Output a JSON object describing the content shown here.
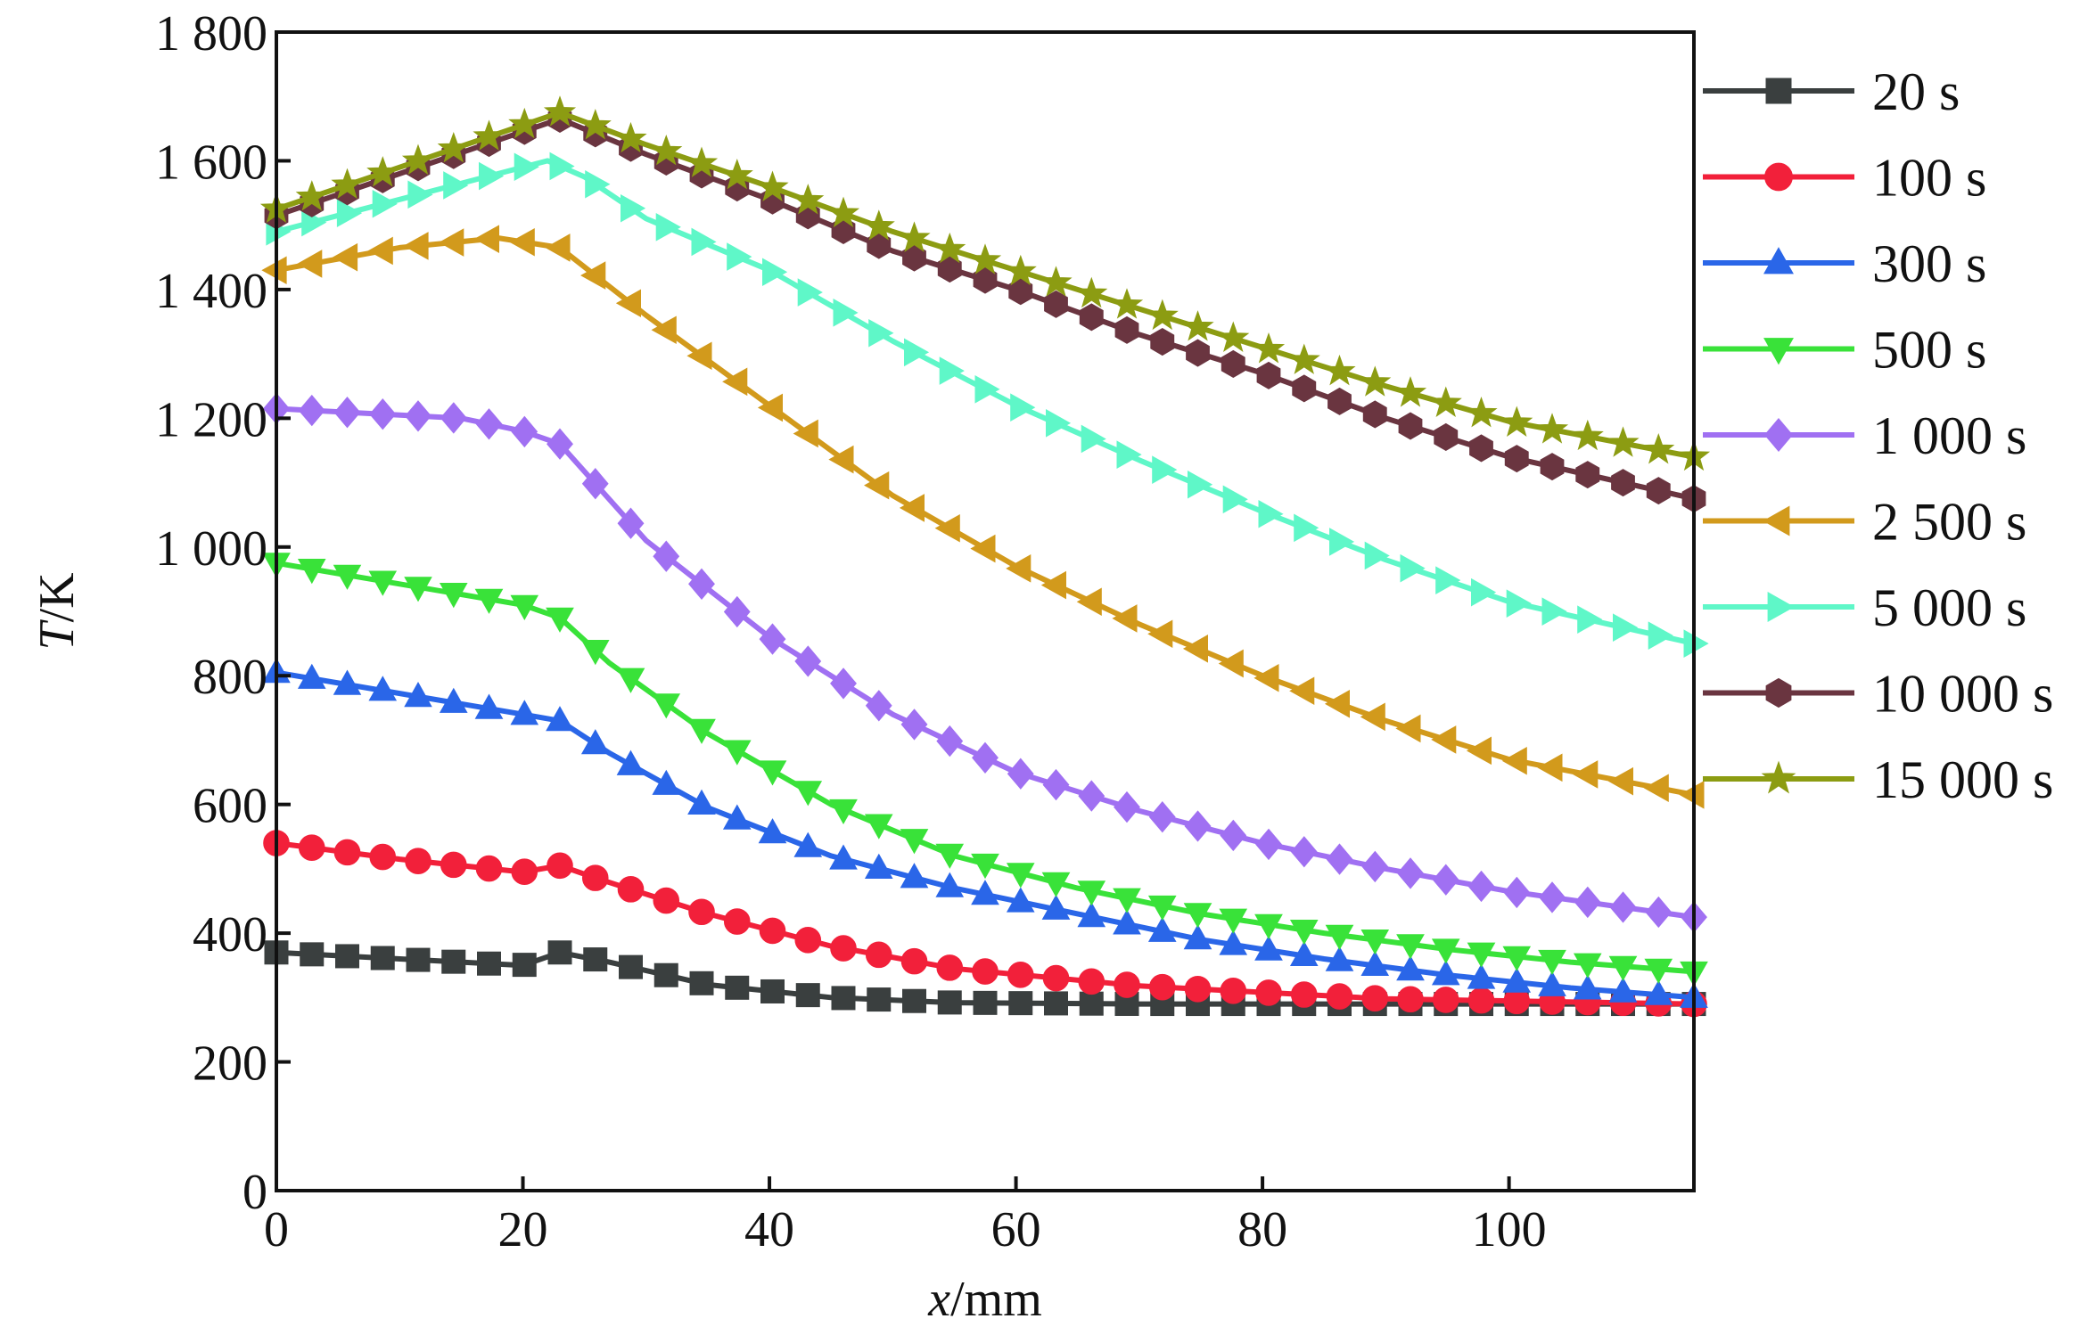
{
  "chart_data": {
    "type": "line",
    "title": "",
    "xlabel": {
      "var": "x",
      "unit": "/mm"
    },
    "ylabel": {
      "var": "T",
      "unit": "/K"
    },
    "xlim": [
      0,
      115
    ],
    "ylim": [
      0,
      1800
    ],
    "xticks": [
      0,
      20,
      40,
      60,
      80,
      100
    ],
    "xtick_labels": [
      "0",
      "20",
      "40",
      "60",
      "80",
      "100"
    ],
    "yticks": [
      0,
      200,
      400,
      600,
      800,
      1000,
      1200,
      1400,
      1600,
      1800
    ],
    "ytick_labels": [
      "0",
      "200",
      "400",
      "600",
      "800",
      "1 000",
      "1 200",
      "1 400",
      "1 600",
      "1 800"
    ],
    "grid": false,
    "legend_position": "right",
    "series": [
      {
        "name": "20 s",
        "color": "#3a3f3f",
        "marker": "square",
        "points": [
          [
            0,
            370
          ],
          [
            20,
            350
          ],
          [
            23,
            370
          ],
          [
            27,
            355
          ],
          [
            35,
            320
          ],
          [
            45,
            300
          ],
          [
            55,
            292
          ],
          [
            70,
            290
          ],
          [
            90,
            290
          ],
          [
            115,
            290
          ]
        ]
      },
      {
        "name": "100 s",
        "color": "#f2203a",
        "marker": "circle",
        "points": [
          [
            0,
            540
          ],
          [
            10,
            515
          ],
          [
            20,
            495
          ],
          [
            23,
            505
          ],
          [
            26,
            485
          ],
          [
            35,
            430
          ],
          [
            45,
            380
          ],
          [
            55,
            345
          ],
          [
            70,
            318
          ],
          [
            90,
            298
          ],
          [
            115,
            290
          ]
        ]
      },
      {
        "name": "300 s",
        "color": "#2a66e8",
        "marker": "triangle-up",
        "points": [
          [
            0,
            805
          ],
          [
            20,
            740
          ],
          [
            23,
            730
          ],
          [
            27,
            680
          ],
          [
            35,
            595
          ],
          [
            45,
            520
          ],
          [
            55,
            470
          ],
          [
            65,
            430
          ],
          [
            75,
            390
          ],
          [
            85,
            360
          ],
          [
            95,
            335
          ],
          [
            105,
            315
          ],
          [
            115,
            300
          ]
        ]
      },
      {
        "name": "500 s",
        "color": "#39e239",
        "marker": "triangle-down",
        "points": [
          [
            0,
            975
          ],
          [
            20,
            910
          ],
          [
            23,
            890
          ],
          [
            27,
            820
          ],
          [
            35,
            710
          ],
          [
            45,
            600
          ],
          [
            55,
            520
          ],
          [
            65,
            470
          ],
          [
            75,
            430
          ],
          [
            85,
            400
          ],
          [
            95,
            375
          ],
          [
            105,
            355
          ],
          [
            115,
            340
          ]
        ]
      },
      {
        "name": "1 000 s",
        "color": "#a070f2",
        "marker": "diamond",
        "points": [
          [
            0,
            1215
          ],
          [
            15,
            1200
          ],
          [
            20,
            1180
          ],
          [
            23,
            1160
          ],
          [
            30,
            1010
          ],
          [
            40,
            860
          ],
          [
            50,
            740
          ],
          [
            60,
            650
          ],
          [
            70,
            590
          ],
          [
            80,
            540
          ],
          [
            90,
            500
          ],
          [
            100,
            465
          ],
          [
            115,
            425
          ]
        ]
      },
      {
        "name": "2 500 s",
        "color": "#d29a1c",
        "marker": "triangle-left",
        "points": [
          [
            0,
            1430
          ],
          [
            10,
            1465
          ],
          [
            18,
            1480
          ],
          [
            23,
            1465
          ],
          [
            30,
            1360
          ],
          [
            40,
            1220
          ],
          [
            50,
            1080
          ],
          [
            60,
            970
          ],
          [
            70,
            880
          ],
          [
            80,
            800
          ],
          [
            90,
            730
          ],
          [
            100,
            670
          ],
          [
            115,
            615
          ]
        ]
      },
      {
        "name": "5 000 s",
        "color": "#5ff7c8",
        "marker": "triangle-right",
        "points": [
          [
            0,
            1490
          ],
          [
            10,
            1540
          ],
          [
            22,
            1600
          ],
          [
            25,
            1575
          ],
          [
            30,
            1510
          ],
          [
            40,
            1430
          ],
          [
            50,
            1320
          ],
          [
            60,
            1220
          ],
          [
            70,
            1135
          ],
          [
            80,
            1055
          ],
          [
            90,
            980
          ],
          [
            100,
            915
          ],
          [
            115,
            850
          ]
        ]
      },
      {
        "name": "10 000 s",
        "color": "#6a3540",
        "marker": "hexagon",
        "points": [
          [
            0,
            1515
          ],
          [
            10,
            1580
          ],
          [
            23,
            1665
          ],
          [
            30,
            1610
          ],
          [
            40,
            1540
          ],
          [
            50,
            1460
          ],
          [
            60,
            1400
          ],
          [
            70,
            1330
          ],
          [
            80,
            1270
          ],
          [
            90,
            1200
          ],
          [
            100,
            1140
          ],
          [
            115,
            1075
          ]
        ]
      },
      {
        "name": "15 000 s",
        "color": "#8c9c12",
        "marker": "star",
        "points": [
          [
            0,
            1525
          ],
          [
            10,
            1590
          ],
          [
            23,
            1675
          ],
          [
            30,
            1625
          ],
          [
            40,
            1560
          ],
          [
            50,
            1490
          ],
          [
            60,
            1430
          ],
          [
            70,
            1370
          ],
          [
            80,
            1310
          ],
          [
            90,
            1250
          ],
          [
            100,
            1195
          ],
          [
            115,
            1140
          ]
        ]
      }
    ]
  }
}
